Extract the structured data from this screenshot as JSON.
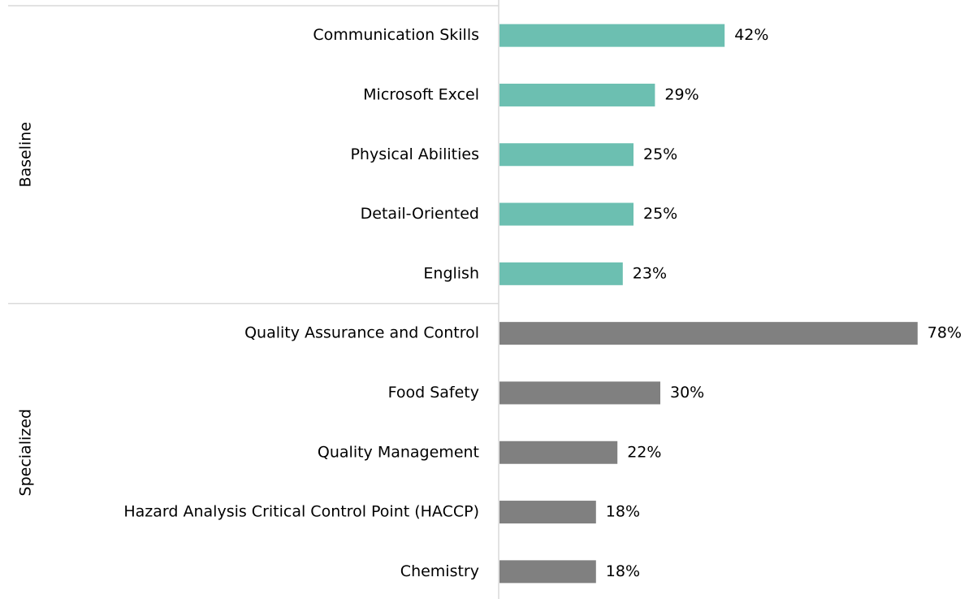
{
  "chart_data": {
    "type": "bar",
    "orientation": "horizontal",
    "groups": [
      {
        "name": "Baseline",
        "color": "#6cbfb1",
        "categories": [
          "Communication Skills",
          "Microsoft Excel",
          "Physical Abilities",
          "Detail-Oriented",
          "English"
        ],
        "values": [
          42,
          29,
          25,
          25,
          23
        ],
        "value_labels": [
          "42%",
          "29%",
          "25%",
          "25%",
          "23%"
        ]
      },
      {
        "name": "Specialized",
        "color": "#808080",
        "categories": [
          "Quality Assurance and Control",
          "Food Safety",
          "Quality Management",
          "Hazard Analysis Critical Control Point (HACCP)",
          "Chemistry"
        ],
        "values": [
          78,
          30,
          22,
          18,
          18
        ],
        "value_labels": [
          "78%",
          "30%",
          "22%",
          "18%",
          "18%"
        ]
      }
    ]
  }
}
